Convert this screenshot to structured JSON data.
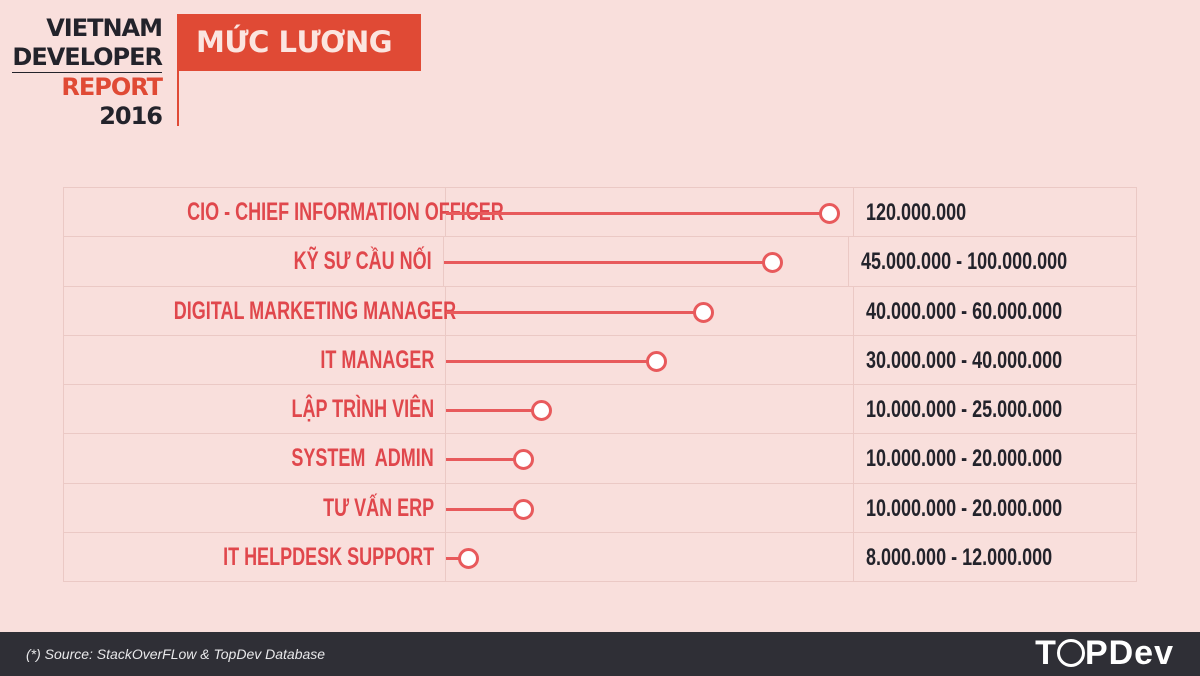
{
  "header": {
    "brand_lines": [
      "VIETNAM",
      "DEVELOPER",
      "REPORT",
      "2016"
    ],
    "title": "MỨC LƯƠNG"
  },
  "colors": {
    "accent": "#e04a35",
    "label": "#e0474c",
    "marker": "#e85a5c",
    "background": "#f9dfdc",
    "footer": "#2f2f36"
  },
  "chart_data": {
    "type": "lollipop",
    "rows": [
      {
        "label": "CIO - CHIEF INFORMATION OFFICER",
        "range": "120.000.000",
        "max": 120000000
      },
      {
        "label": "KỸ SƯ CẦU NỐI",
        "range": "45.000.000 - 100.000.000",
        "max": 100000000
      },
      {
        "label": "DIGITAL MARKETING MANAGER",
        "range": "40.000.000 - 60.000.000",
        "max": 60000000
      },
      {
        "label": "IT MANAGER",
        "range": "30.000.000 - 40.000.000",
        "max": 40000000
      },
      {
        "label": "LẬP TRÌNH VIÊN",
        "range": "10.000.000 - 25.000.000",
        "max": 25000000
      },
      {
        "label": "SYSTEM  ADMIN",
        "range": "10.000.000 - 20.000.000",
        "max": 20000000
      },
      {
        "label": "TƯ VẤN ERP",
        "range": "10.000.000 - 20.000.000",
        "max": 20000000
      },
      {
        "label": "IT HELPDESK SUPPORT",
        "range": "8.000.000 - 12.000.000",
        "max": 12000000
      }
    ]
  },
  "footer": {
    "source": "(*) Source: StackOverFLow & TopDev Database",
    "logo": "TOPDev"
  }
}
